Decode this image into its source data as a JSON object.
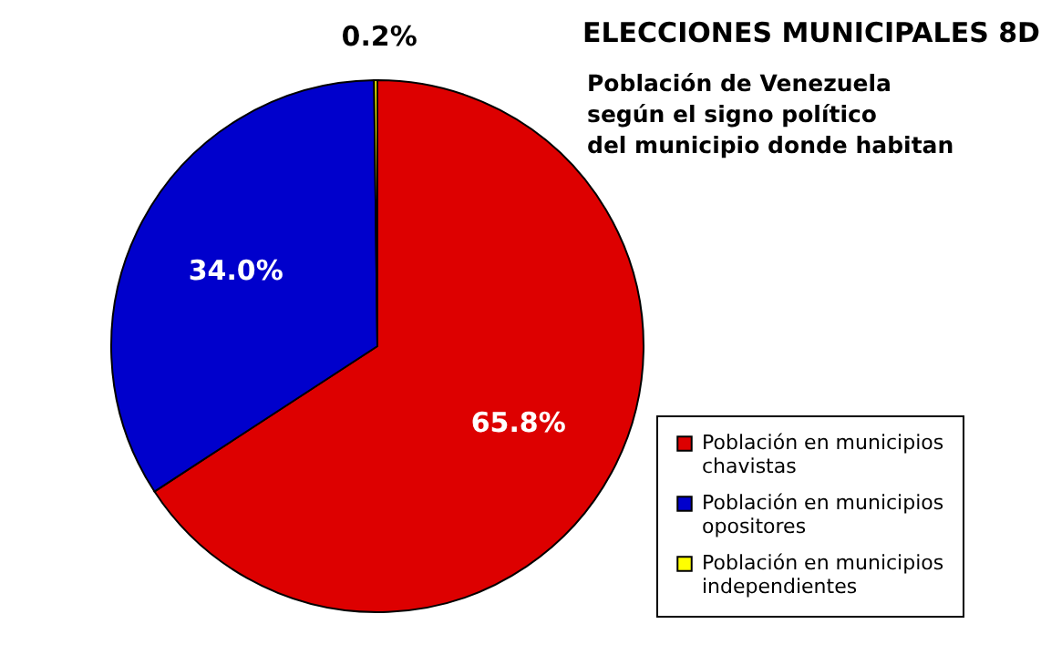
{
  "chart_data": {
    "type": "pie",
    "title": "ELECCIONES MUNICIPALES 8D",
    "subtitle": "Población de Venezuela\nsegún el signo político\ndel municipio donde habitan",
    "categories": [
      "Población en municipios chavistas",
      "Población en municipios opositores",
      "Población en municipios independientes"
    ],
    "values": [
      65.8,
      34.0,
      0.2
    ],
    "colors": [
      "#dd0000",
      "#0000cc",
      "#ffff00"
    ],
    "value_labels": [
      "65.8%",
      "34.0%",
      "0.2%"
    ],
    "legend": "bottom right"
  }
}
